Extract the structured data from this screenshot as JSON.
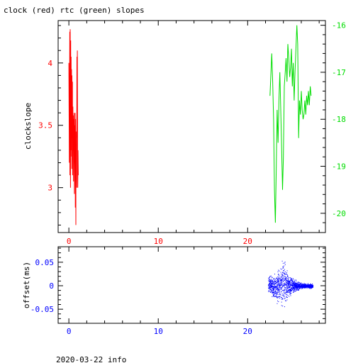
{
  "title": "clock (red) rtc (green) slopes",
  "footer": "2020-03-22 info",
  "colors": {
    "clock": "#ff0000",
    "rtc": "#00dd00",
    "offset": "#0000ff",
    "axis": "#000000"
  },
  "chart_data": [
    {
      "type": "line",
      "title": "clock (red) rtc (green) slopes",
      "xlabel": "",
      "ylabel": "clockslope",
      "xlim": [
        -1.2,
        28.7
      ],
      "ylim": [
        2.64,
        4.34
      ],
      "y2lim": [
        -20.41,
        -15.9
      ],
      "x_ticks": [
        0,
        10,
        20
      ],
      "y_ticks": [
        3,
        3.5,
        4
      ],
      "y2_ticks": [
        -16,
        -17,
        -18,
        -19,
        -20
      ],
      "grid": false,
      "series": [
        {
          "name": "clock",
          "axis": "left",
          "x": [
            0.0,
            0.05,
            0.1,
            0.12,
            0.15,
            0.18,
            0.2,
            0.22,
            0.25,
            0.28,
            0.3,
            0.32,
            0.35,
            0.38,
            0.4,
            0.42,
            0.45,
            0.48,
            0.5,
            0.52,
            0.55,
            0.58,
            0.6,
            0.62,
            0.65,
            0.68,
            0.7,
            0.72,
            0.75,
            0.78,
            0.8,
            0.82,
            0.85,
            0.88,
            0.9,
            0.92,
            0.95,
            0.98,
            1.0,
            1.02,
            1.05
          ],
          "y": [
            4.0,
            3.2,
            4.25,
            3.1,
            4.27,
            3.0,
            4.18,
            3.3,
            4.05,
            3.25,
            3.95,
            3.15,
            3.9,
            3.4,
            3.85,
            3.1,
            3.65,
            3.3,
            3.58,
            3.05,
            3.55,
            3.4,
            3.6,
            2.95,
            3.5,
            3.2,
            3.6,
            2.84,
            3.55,
            2.7,
            3.45,
            3.1,
            3.2,
            3.0,
            4.05,
            3.4,
            4.1,
            3.1,
            3.0,
            3.3,
            3.1
          ]
        },
        {
          "name": "rtc",
          "axis": "right",
          "x": [
            22.5,
            22.7,
            22.8,
            22.9,
            23.0,
            23.1,
            23.2,
            23.3,
            23.4,
            23.5,
            23.6,
            23.7,
            23.8,
            23.9,
            24.0,
            24.1,
            24.2,
            24.3,
            24.4,
            24.5,
            24.6,
            24.7,
            24.8,
            24.9,
            25.0,
            25.1,
            25.2,
            25.3,
            25.4,
            25.5,
            25.6,
            25.7,
            25.8,
            25.9,
            26.0,
            26.1,
            26.2,
            26.3,
            26.4,
            26.5,
            26.6,
            26.7,
            26.8,
            26.9,
            27.0,
            27.1
          ],
          "y": [
            -17.5,
            -16.6,
            -17.2,
            -18.0,
            -19.5,
            -20.2,
            -19.0,
            -17.8,
            -18.5,
            -17.6,
            -17.0,
            -17.8,
            -18.6,
            -19.5,
            -18.8,
            -17.3,
            -17.0,
            -16.7,
            -17.2,
            -16.4,
            -16.7,
            -17.1,
            -16.9,
            -16.5,
            -17.3,
            -16.8,
            -17.6,
            -17.0,
            -16.5,
            -16.0,
            -16.4,
            -18.4,
            -17.6,
            -17.9,
            -17.4,
            -17.8,
            -18.0,
            -17.9,
            -17.6,
            -17.9,
            -17.5,
            -17.7,
            -17.4,
            -17.7,
            -17.3,
            -17.5
          ]
        }
      ]
    },
    {
      "type": "scatter",
      "title": "",
      "xlabel": "",
      "ylabel": "offset(ms)",
      "xlim": [
        -1.2,
        28.7
      ],
      "ylim": [
        -0.08,
        0.083
      ],
      "x_ticks": [
        0,
        10,
        20
      ],
      "y_ticks": [
        0.05,
        0,
        -0.05
      ],
      "grid": false,
      "series": [
        {
          "name": "offset",
          "x_range": [
            22.3,
            27.3
          ],
          "spread_ms": [
            {
              "x": 22.5,
              "lo": -0.02,
              "hi": 0.025
            },
            {
              "x": 23.0,
              "lo": -0.035,
              "hi": 0.03
            },
            {
              "x": 23.5,
              "lo": -0.05,
              "hi": 0.045
            },
            {
              "x": 24.0,
              "lo": -0.06,
              "hi": 0.07
            },
            {
              "x": 24.5,
              "lo": -0.03,
              "hi": 0.03
            },
            {
              "x": 25.0,
              "lo": -0.02,
              "hi": 0.02
            },
            {
              "x": 25.5,
              "lo": -0.012,
              "hi": 0.012
            },
            {
              "x": 26.0,
              "lo": -0.008,
              "hi": 0.008
            },
            {
              "x": 26.5,
              "lo": -0.006,
              "hi": 0.006
            },
            {
              "x": 27.0,
              "lo": -0.006,
              "hi": 0.006
            }
          ]
        }
      ]
    }
  ]
}
